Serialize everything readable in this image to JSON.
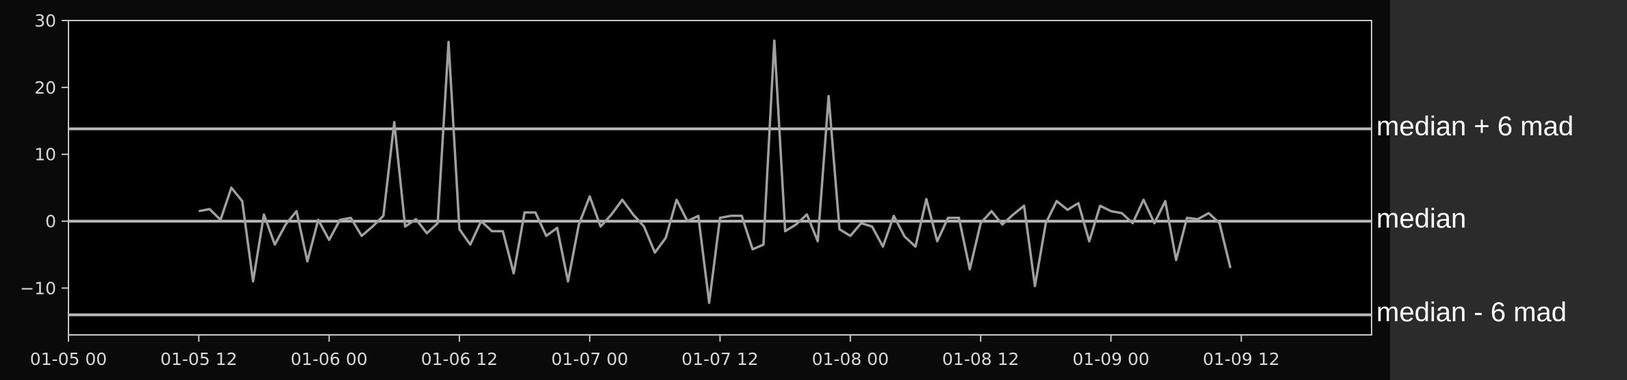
{
  "chart_data": {
    "type": "line",
    "title": "",
    "xlabel": "",
    "ylabel": "",
    "xlim": [
      "2025-01-05T00:00",
      "2025-01-10T00:00"
    ],
    "ylim": [
      -17,
      30
    ],
    "yticks": [
      -10,
      0,
      10,
      20,
      30
    ],
    "xticks": [
      {
        "at": "2025-01-05T00:00",
        "label": "01-05 00"
      },
      {
        "at": "2025-01-05T12:00",
        "label": "01-05 12"
      },
      {
        "at": "2025-01-06T00:00",
        "label": "01-06 00"
      },
      {
        "at": "2025-01-06T12:00",
        "label": "01-06 12"
      },
      {
        "at": "2025-01-07T00:00",
        "label": "01-07 00"
      },
      {
        "at": "2025-01-07T12:00",
        "label": "01-07 12"
      },
      {
        "at": "2025-01-08T00:00",
        "label": "01-08 00"
      },
      {
        "at": "2025-01-08T12:00",
        "label": "01-08 12"
      },
      {
        "at": "2025-01-09T00:00",
        "label": "01-09 00"
      },
      {
        "at": "2025-01-09T12:00",
        "label": "01-09 12"
      }
    ],
    "grid": false,
    "series": [
      {
        "start": "2025-01-05T12:00",
        "interval_hours": 1,
        "color": "#a0a0a0",
        "values": [
          1.5,
          1.8,
          0.2,
          5.0,
          3.0,
          -9.0,
          1.0,
          -3.5,
          -0.5,
          1.5,
          -6.0,
          0.2,
          -2.8,
          0.2,
          0.5,
          -2.2,
          -0.8,
          0.8,
          14.8,
          -0.8,
          0.3,
          -1.8,
          -0.3,
          26.8,
          -1.2,
          -3.5,
          0.0,
          -1.5,
          -1.5,
          -7.8,
          1.3,
          1.3,
          -2.2,
          -1.0,
          -9.0,
          -0.5,
          3.7,
          -0.8,
          1.0,
          3.2,
          1.0,
          -0.8,
          -4.7,
          -2.5,
          3.2,
          0.0,
          0.8,
          -12.2,
          0.5,
          0.8,
          0.8,
          -4.2,
          -3.5,
          27.0,
          -1.5,
          -0.5,
          1.0,
          -3.0,
          18.7,
          -1.2,
          -2.2,
          -0.3,
          -0.8,
          -3.8,
          0.8,
          -2.3,
          -3.8,
          3.3,
          -3.0,
          0.5,
          0.5,
          -7.2,
          -0.3,
          1.5,
          -0.5,
          1.0,
          2.3,
          -9.7,
          -0.3,
          3.0,
          1.7,
          2.7,
          -3.0,
          2.3,
          1.5,
          1.2,
          -0.3,
          3.2,
          -0.3,
          3.0,
          -5.8,
          0.5,
          0.3,
          1.2,
          -0.3,
          -7.0
        ]
      }
    ],
    "reference_lines": [
      {
        "y": 13.8,
        "label": "median + 6 mad",
        "color": "#bbbbbb"
      },
      {
        "y": 0.0,
        "label": "median",
        "color": "#bbbbbb"
      },
      {
        "y": -14.0,
        "label": "median - 6 mad",
        "color": "#bbbbbb"
      }
    ],
    "colors": {
      "background": "#0a0a0a",
      "plot_background": "#000000",
      "axes": "#c8c8c8",
      "tick_labels": "#d8d8d8",
      "side_panel": "#2b2b2b",
      "annotation_text": "#ffffff"
    }
  }
}
